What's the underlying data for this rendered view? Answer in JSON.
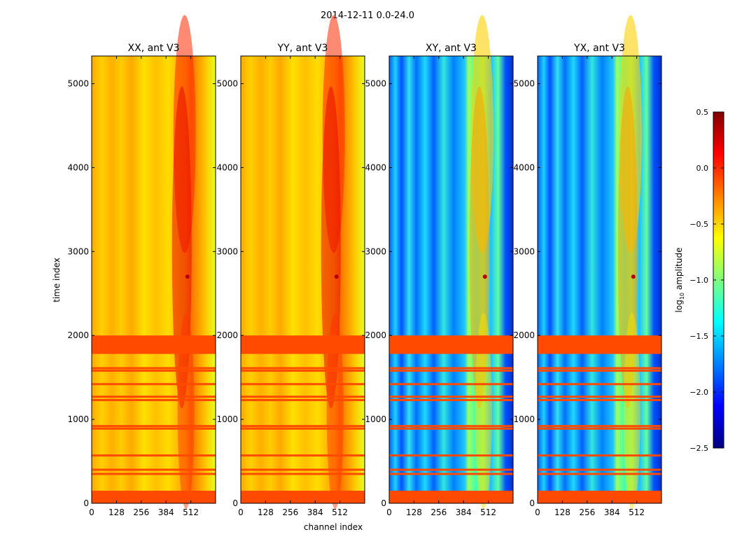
{
  "figure": {
    "suptitle": "2014-12-11 0.0-24.0",
    "xlabel": "channel index",
    "ylabel": "time index"
  },
  "chart_data": {
    "type": "heatmap",
    "colormap": "jet",
    "x_range": [
      0,
      640
    ],
    "y_range": [
      0,
      5330
    ],
    "x_ticks": [
      0,
      128,
      256,
      384,
      512
    ],
    "y_ticks": [
      0,
      1000,
      2000,
      3000,
      4000,
      5000
    ],
    "colorbar": {
      "label": "log10 amplitude",
      "label_base": "log",
      "label_sub": "10",
      "label_rest": " amplitude",
      "range": [
        -2.5,
        0.5
      ],
      "ticks": [
        0.5,
        0.0,
        -0.5,
        -1.0,
        -1.5,
        -2.0,
        -2.5
      ],
      "tick_labels": [
        "0.5",
        "0.0",
        "−0.5",
        "−1.0",
        "−1.5",
        "−2.0",
        "−2.5"
      ]
    },
    "flagged_time_blocks": [
      [
        1780,
        2000
      ],
      [
        0,
        150
      ]
    ],
    "flagged_time_lines": [
      350,
      400,
      570,
      890,
      920,
      1230,
      1270,
      1420,
      1580,
      1610
    ],
    "panels": [
      {
        "title": "XX, ant V3",
        "baseline_level": -0.6,
        "feature_peak": 0.3
      },
      {
        "title": "YY, ant V3",
        "baseline_level": -0.55,
        "feature_peak": 0.4
      },
      {
        "title": "XY, ant V3",
        "baseline_level": -1.8,
        "feature_peak": -0.4
      },
      {
        "title": "YX, ant V3",
        "baseline_level": -1.8,
        "feature_peak": -0.4
      }
    ]
  }
}
